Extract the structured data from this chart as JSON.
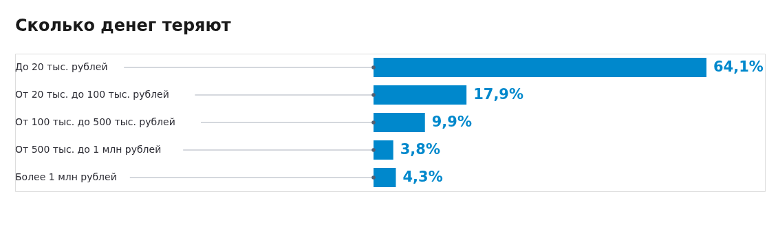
{
  "chart_data": {
    "type": "bar",
    "orientation": "horizontal",
    "title": "Сколько денег теряют",
    "categories": [
      "До 20 тыс. рублей",
      "От 20 тыс. до 100 тыс. рублей",
      "От 100 тыс. до 500 тыс. рублей",
      "От 500 тыс. до 1 млн рублей",
      "Более 1 млн рублей"
    ],
    "values": [
      64.1,
      17.9,
      9.9,
      3.8,
      4.3
    ],
    "value_labels": [
      "64,1%",
      "17,9%",
      "9,9%",
      "3,8%",
      "4,3%"
    ],
    "color": "#0088cc"
  }
}
